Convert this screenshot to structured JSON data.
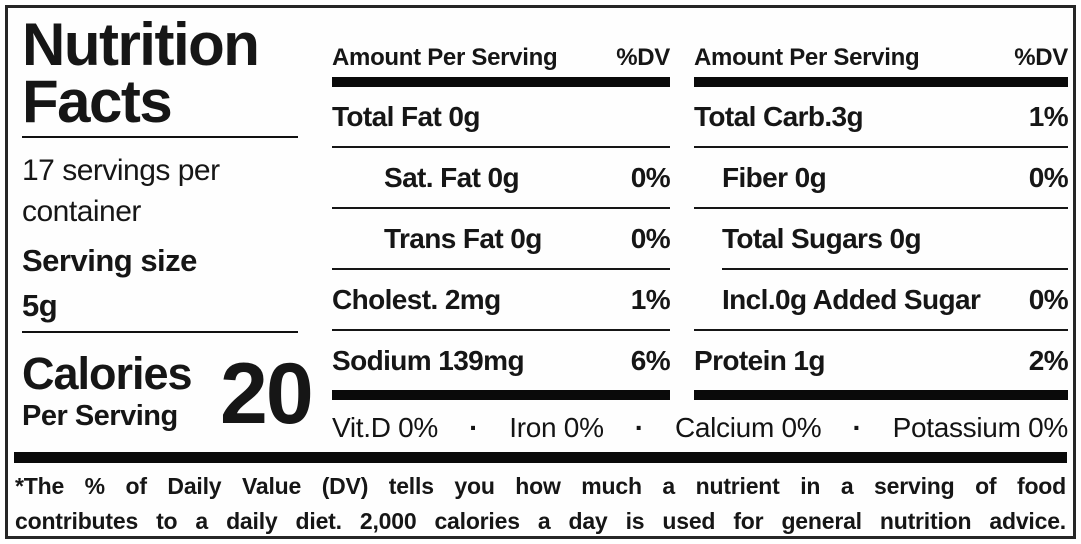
{
  "info": {
    "title_line1": "Nutrition",
    "title_line2": "Facts",
    "servings_line1": "17 servings per",
    "servings_line2": "container",
    "serving_size_label": "Serving size",
    "serving_size_value": "5g",
    "calories_label": "Calories",
    "calories_sublabel": "Per Serving",
    "calories_value": "20"
  },
  "panel_mid": {
    "header": {
      "amount": "Amount Per Serving",
      "dv": "%DV"
    },
    "rows": [
      {
        "name": "Total Fat 0g",
        "dv": ""
      },
      {
        "name": "Sat. Fat 0g",
        "dv": "0%"
      },
      {
        "name": "Trans Fat 0g",
        "dv": "0%"
      },
      {
        "name": "Cholest. 2mg",
        "dv": "1%"
      },
      {
        "name": "Sodium 139mg",
        "dv": "6%"
      }
    ]
  },
  "panel_right": {
    "header": {
      "amount": "Amount Per Serving",
      "dv": "%DV"
    },
    "rows": [
      {
        "name": "Total Carb.3g",
        "dv": "1%"
      },
      {
        "name": "Fiber 0g",
        "dv": "0%"
      },
      {
        "name": "Total Sugars 0g",
        "dv": ""
      },
      {
        "name": "Incl.0g Added Sugar",
        "dv": "0%"
      },
      {
        "name": "Protein 1g",
        "dv": "2%"
      }
    ]
  },
  "micronutrients": {
    "items": [
      "Vit.D 0%",
      "Iron 0%",
      "Calcium 0%",
      "Potassium 0%"
    ],
    "separator": "·"
  },
  "footnote": {
    "line1": "*The % of Daily Value (DV) tells you how much a nutrient in a serving of food",
    "line2": "contributes to a daily diet. 2,000 calories a day is used for general nutrition advice."
  },
  "colors": {
    "ink": "#161616",
    "background": "#fefefe"
  }
}
